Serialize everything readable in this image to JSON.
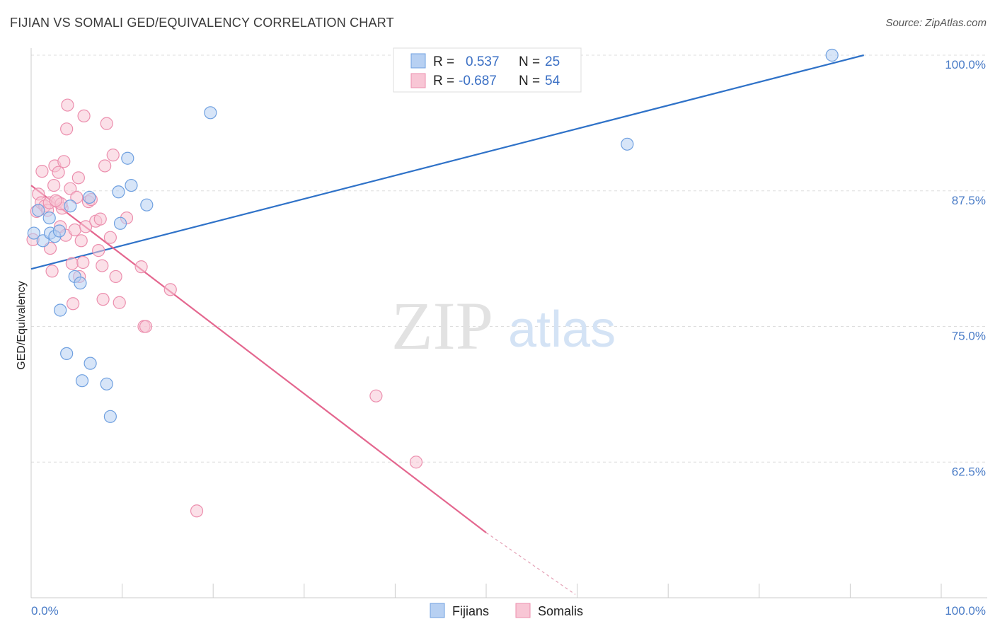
{
  "title": "FIJIAN VS SOMALI GED/EQUIVALENCY CORRELATION CHART",
  "source": "Source: ZipAtlas.com",
  "watermark": {
    "zip": "ZIP",
    "atlas": "atlas"
  },
  "chart_data": {
    "type": "scatter",
    "ylabel": "GED/Equivalency",
    "xlabel": "",
    "xlim": [
      0,
      100
    ],
    "ylim": [
      50,
      100
    ],
    "x_tick_labels": [
      "0.0%",
      "100.0%"
    ],
    "y_ticks": [
      62.5,
      75.0,
      87.5,
      100.0
    ],
    "y_tick_labels": [
      "62.5%",
      "75.0%",
      "87.5%",
      "100.0%"
    ],
    "grid": true,
    "legend": {
      "placement": "top-center",
      "rows": [
        {
          "r_label": "R =",
          "r_value": "0.537",
          "n_label": "N =",
          "n_value": "25",
          "color": "#a9c8f0"
        },
        {
          "r_label": "R =",
          "r_value": "-0.687",
          "n_label": "N =",
          "n_value": "54",
          "color": "#f6b8cb"
        }
      ]
    },
    "series": [
      {
        "name": "Fijians",
        "color": "#6fa0e0",
        "fill": "#b7d0f2",
        "trend": {
          "x0": 0,
          "y0": 80.3,
          "x1": 91.5,
          "y1": 100.0,
          "color": "#2f72c8"
        },
        "points": [
          [
            0.3,
            83.6
          ],
          [
            0.8,
            85.7
          ],
          [
            1.3,
            82.9
          ],
          [
            2.1,
            83.6
          ],
          [
            2.0,
            85.0
          ],
          [
            2.6,
            83.3
          ],
          [
            3.1,
            83.8
          ],
          [
            4.3,
            86.1
          ],
          [
            3.2,
            76.5
          ],
          [
            3.9,
            72.5
          ],
          [
            4.8,
            79.6
          ],
          [
            5.4,
            79.0
          ],
          [
            5.6,
            70.0
          ],
          [
            6.5,
            71.6
          ],
          [
            6.4,
            86.9
          ],
          [
            8.3,
            69.7
          ],
          [
            8.7,
            66.7
          ],
          [
            9.6,
            87.4
          ],
          [
            9.8,
            84.5
          ],
          [
            10.6,
            90.5
          ],
          [
            11.0,
            88.0
          ],
          [
            12.7,
            86.2
          ],
          [
            19.7,
            94.7
          ],
          [
            65.5,
            91.8
          ],
          [
            88.0,
            100.0
          ]
        ]
      },
      {
        "name": "Somalis",
        "color": "#ec8fae",
        "fill": "#f8c6d5",
        "trend": {
          "x0": 0,
          "y0": 88.0,
          "x1": 50.0,
          "y1": 56.0,
          "color": "#e4678f"
        },
        "trend_dashed": {
          "x0": 50.0,
          "y0": 56.0,
          "x1": 59.8,
          "y1": 50.3,
          "color": "#e4a0b5"
        },
        "points": [
          [
            0.2,
            83.0
          ],
          [
            0.6,
            85.6
          ],
          [
            0.8,
            87.2
          ],
          [
            1.1,
            86.4
          ],
          [
            1.5,
            86.1
          ],
          [
            1.2,
            89.3
          ],
          [
            1.8,
            85.7
          ],
          [
            2.0,
            86.4
          ],
          [
            2.1,
            82.2
          ],
          [
            2.3,
            80.1
          ],
          [
            2.5,
            88.0
          ],
          [
            2.6,
            89.8
          ],
          [
            2.9,
            86.5
          ],
          [
            3.0,
            89.2
          ],
          [
            3.2,
            84.2
          ],
          [
            3.4,
            85.9
          ],
          [
            3.6,
            90.2
          ],
          [
            3.8,
            83.4
          ],
          [
            3.9,
            93.2
          ],
          [
            4.0,
            95.4
          ],
          [
            4.3,
            87.7
          ],
          [
            4.5,
            80.8
          ],
          [
            4.6,
            77.1
          ],
          [
            4.8,
            83.9
          ],
          [
            5.0,
            86.9
          ],
          [
            5.2,
            88.7
          ],
          [
            5.3,
            79.6
          ],
          [
            5.5,
            82.9
          ],
          [
            5.7,
            80.9
          ],
          [
            5.8,
            94.4
          ],
          [
            6.0,
            84.2
          ],
          [
            6.3,
            86.5
          ],
          [
            6.6,
            86.7
          ],
          [
            7.1,
            84.7
          ],
          [
            7.4,
            82.0
          ],
          [
            7.6,
            84.9
          ],
          [
            7.8,
            80.6
          ],
          [
            7.9,
            77.5
          ],
          [
            8.1,
            89.8
          ],
          [
            8.3,
            93.7
          ],
          [
            8.7,
            83.2
          ],
          [
            9.0,
            90.8
          ],
          [
            9.3,
            79.6
          ],
          [
            9.7,
            77.2
          ],
          [
            10.5,
            85.0
          ],
          [
            12.1,
            80.5
          ],
          [
            12.4,
            75.0
          ],
          [
            12.6,
            75.0
          ],
          [
            15.3,
            78.4
          ],
          [
            18.2,
            58.0
          ],
          [
            37.9,
            68.6
          ],
          [
            42.3,
            62.5
          ],
          [
            3.3,
            86.3
          ],
          [
            2.7,
            86.6
          ]
        ]
      }
    ]
  }
}
